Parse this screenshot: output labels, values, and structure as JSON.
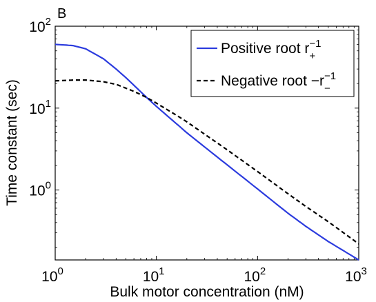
{
  "panel_label": "B",
  "chart_data": {
    "type": "line",
    "title": "",
    "xlabel": "Bulk motor concentration (nM)",
    "ylabel": "Time constant (sec)",
    "x_scale": "log",
    "y_scale": "log",
    "xlim": [
      1,
      1000
    ],
    "ylim": [
      0.14,
      100
    ],
    "grid": false,
    "legend_position": "top-right",
    "x_ticks": [
      {
        "base": "10",
        "exp": "0"
      },
      {
        "base": "10",
        "exp": "1"
      },
      {
        "base": "10",
        "exp": "2"
      },
      {
        "base": "10",
        "exp": "3"
      }
    ],
    "y_ticks": [
      {
        "base": "10",
        "exp": "0"
      },
      {
        "base": "10",
        "exp": "1"
      },
      {
        "base": "10",
        "exp": "2"
      }
    ],
    "series": [
      {
        "name": "Positive root",
        "legend_symbol": {
          "base": "r",
          "sub": "+",
          "sup": "−1"
        },
        "color": "#2b3bde",
        "style": "solid",
        "x": [
          1,
          1.5,
          2,
          3,
          4,
          5,
          6,
          8,
          10,
          15,
          20,
          30,
          50,
          100,
          200,
          300,
          500,
          1000
        ],
        "y": [
          60,
          58,
          53,
          40,
          30,
          23.5,
          19,
          13.5,
          10.5,
          6.8,
          5.0,
          3.35,
          2.03,
          1.03,
          0.52,
          0.36,
          0.235,
          0.14
        ]
      },
      {
        "name": "Negative root",
        "legend_symbol": {
          "base": "−r",
          "sub": "−",
          "sup": "−1"
        },
        "color": "#000000",
        "style": "dashed",
        "x": [
          1,
          1.5,
          2,
          3,
          4,
          5,
          6,
          8,
          10,
          15,
          20,
          30,
          50,
          100,
          200,
          300,
          500,
          1000
        ],
        "y": [
          21.5,
          22,
          22,
          21,
          19.5,
          17.5,
          16,
          13.5,
          11.5,
          8.5,
          6.8,
          4.8,
          3.1,
          1.68,
          0.9,
          0.63,
          0.41,
          0.22
        ]
      }
    ]
  }
}
